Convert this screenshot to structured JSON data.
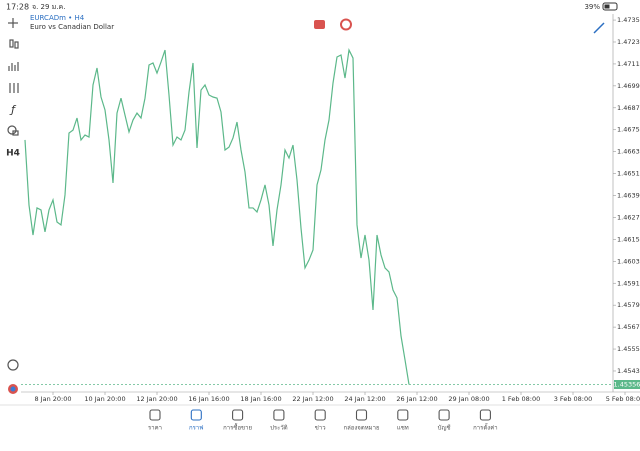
{
  "status_bar": {
    "time": "17:28",
    "date": "จ. 29 ม.ค.",
    "battery": "39%"
  },
  "toolbar": {
    "timeframe": "H4"
  },
  "chart_header": {
    "symbol": "EURCADm • H4",
    "description": "Euro vs Canadian Dollar"
  },
  "chart_data": {
    "type": "line",
    "color": "#5cb88a",
    "grid": false,
    "values": [
      1.46694,
      1.46338,
      1.46174,
      1.46322,
      1.46311,
      1.46191,
      1.46311,
      1.46366,
      1.46245,
      1.46229,
      1.46393,
      1.46732,
      1.46748,
      1.46814,
      1.46694,
      1.46721,
      1.4671,
      1.46995,
      1.47088,
      1.46929,
      1.46858,
      1.46694,
      1.46459,
      1.46841,
      1.46923,
      1.4683,
      1.46738,
      1.46803,
      1.46841,
      1.46814,
      1.46923,
      1.47104,
      1.47115,
      1.4706,
      1.4712,
      1.47186,
      1.4694,
      1.46666,
      1.4671,
      1.46694,
      1.46748,
      1.46956,
      1.47115,
      1.4665,
      1.46967,
      1.46995,
      1.4694,
      1.46929,
      1.46923,
      1.46847,
      1.46639,
      1.46655,
      1.46705,
      1.46792,
      1.46639,
      1.46519,
      1.46322,
      1.46322,
      1.463,
      1.46366,
      1.46448,
      1.46338,
      1.46114,
      1.46311,
      1.46448,
      1.46639,
      1.46595,
      1.46666,
      1.46475,
      1.46212,
      1.45994,
      1.46037,
      1.46092,
      1.46448,
      1.4653,
      1.46694,
      1.46803,
      1.47005,
      1.47148,
      1.47159,
      1.47033,
      1.47186,
      1.47142,
      1.46229,
      1.46048,
      1.46174,
      1.46037,
      1.45764,
      1.46174,
      1.46065,
      1.45994,
      1.45972,
      1.45873,
      1.4583,
      1.45622,
      1.45491,
      1.45356
    ],
    "xlim": [
      -1,
      147
    ],
    "xticks": [
      {
        "value": 7,
        "label": "8 Jan 20:00"
      },
      {
        "value": 20,
        "label": "10 Jan 20:00"
      },
      {
        "value": 33,
        "label": "12 Jan 20:00"
      },
      {
        "value": 46,
        "label": "16 Jan 16:00"
      },
      {
        "value": 59,
        "label": "18 Jan 16:00"
      },
      {
        "value": 72,
        "label": "22 Jan 12:00"
      },
      {
        "value": 85,
        "label": "24 Jan 12:00"
      },
      {
        "value": 98,
        "label": "26 Jan 12:00"
      },
      {
        "value": 111,
        "label": "29 Jan 08:00"
      },
      {
        "value": 124,
        "label": "1 Feb 08:00"
      },
      {
        "value": 137,
        "label": "3 Feb 08:00"
      },
      {
        "value": 150,
        "label": "5 Feb 08:00"
      }
    ],
    "ylim": [
      1.45315,
      1.47416
    ],
    "yticks": [
      {
        "value": 1.4735,
        "label": "1.47350"
      },
      {
        "value": 1.4723,
        "label": "1.47230"
      },
      {
        "value": 1.4711,
        "label": "1.47110"
      },
      {
        "value": 1.4699,
        "label": "1.46990"
      },
      {
        "value": 1.4687,
        "label": "1.46870"
      },
      {
        "value": 1.4675,
        "label": "1.46750"
      },
      {
        "value": 1.4663,
        "label": "1.46630"
      },
      {
        "value": 1.4651,
        "label": "1.46510"
      },
      {
        "value": 1.4639,
        "label": "1.46390"
      },
      {
        "value": 1.4627,
        "label": "1.46270"
      },
      {
        "value": 1.4615,
        "label": "1.46150"
      },
      {
        "value": 1.4603,
        "label": "1.46030"
      },
      {
        "value": 1.4591,
        "label": "1.45910"
      },
      {
        "value": 1.4579,
        "label": "1.45790"
      },
      {
        "value": 1.4567,
        "label": "1.45670"
      },
      {
        "value": 1.4555,
        "label": "1.45550"
      },
      {
        "value": 1.4543,
        "label": "1.45430"
      }
    ],
    "current_price": 1.45356
  },
  "tabs": [
    "ราคา",
    "กราฟ",
    "การซื้อขาย",
    "ประวัติ",
    "ข่าว",
    "กล่องจดหมาย",
    "แชท",
    "บัญชี",
    "การตั้งค่า"
  ],
  "active_tab": 1
}
